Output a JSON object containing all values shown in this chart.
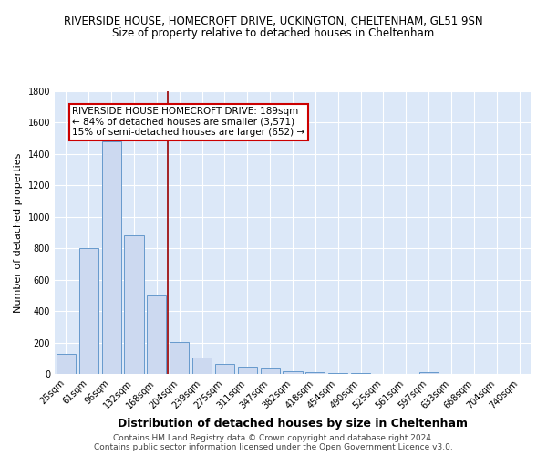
{
  "title": "RIVERSIDE HOUSE, HOMECROFT DRIVE, UCKINGTON, CHELTENHAM, GL51 9SN",
  "subtitle": "Size of property relative to detached houses in Cheltenham",
  "xlabel": "Distribution of detached houses by size in Cheltenham",
  "ylabel": "Number of detached properties",
  "footer_line1": "Contains HM Land Registry data © Crown copyright and database right 2024.",
  "footer_line2": "Contains public sector information licensed under the Open Government Licence v3.0.",
  "categories": [
    "25sqm",
    "61sqm",
    "96sqm",
    "132sqm",
    "168sqm",
    "204sqm",
    "239sqm",
    "275sqm",
    "311sqm",
    "347sqm",
    "382sqm",
    "418sqm",
    "454sqm",
    "490sqm",
    "525sqm",
    "561sqm",
    "597sqm",
    "633sqm",
    "668sqm",
    "704sqm",
    "740sqm"
  ],
  "values": [
    130,
    800,
    1480,
    880,
    500,
    205,
    105,
    65,
    48,
    33,
    18,
    10,
    5,
    3,
    2,
    1,
    14,
    0,
    0,
    0,
    0
  ],
  "bar_color": "#ccd9f0",
  "bar_edge_color": "#6699cc",
  "background_color": "#dce8f8",
  "grid_color": "#ffffff",
  "vline_x": 4.5,
  "vline_color": "#990000",
  "annotation_line1": "RIVERSIDE HOUSE HOMECROFT DRIVE: 189sqm",
  "annotation_line2": "← 84% of detached houses are smaller (3,571)",
  "annotation_line3": "15% of semi-detached houses are larger (652) →",
  "annotation_box_color": "#ffffff",
  "annotation_box_edge": "#cc0000",
  "ylim_max": 1800,
  "title_fontsize": 8.5,
  "subtitle_fontsize": 8.5,
  "annot_fontsize": 7.5,
  "ylabel_fontsize": 8,
  "xlabel_fontsize": 9,
  "tick_fontsize": 7,
  "footer_fontsize": 6.5
}
